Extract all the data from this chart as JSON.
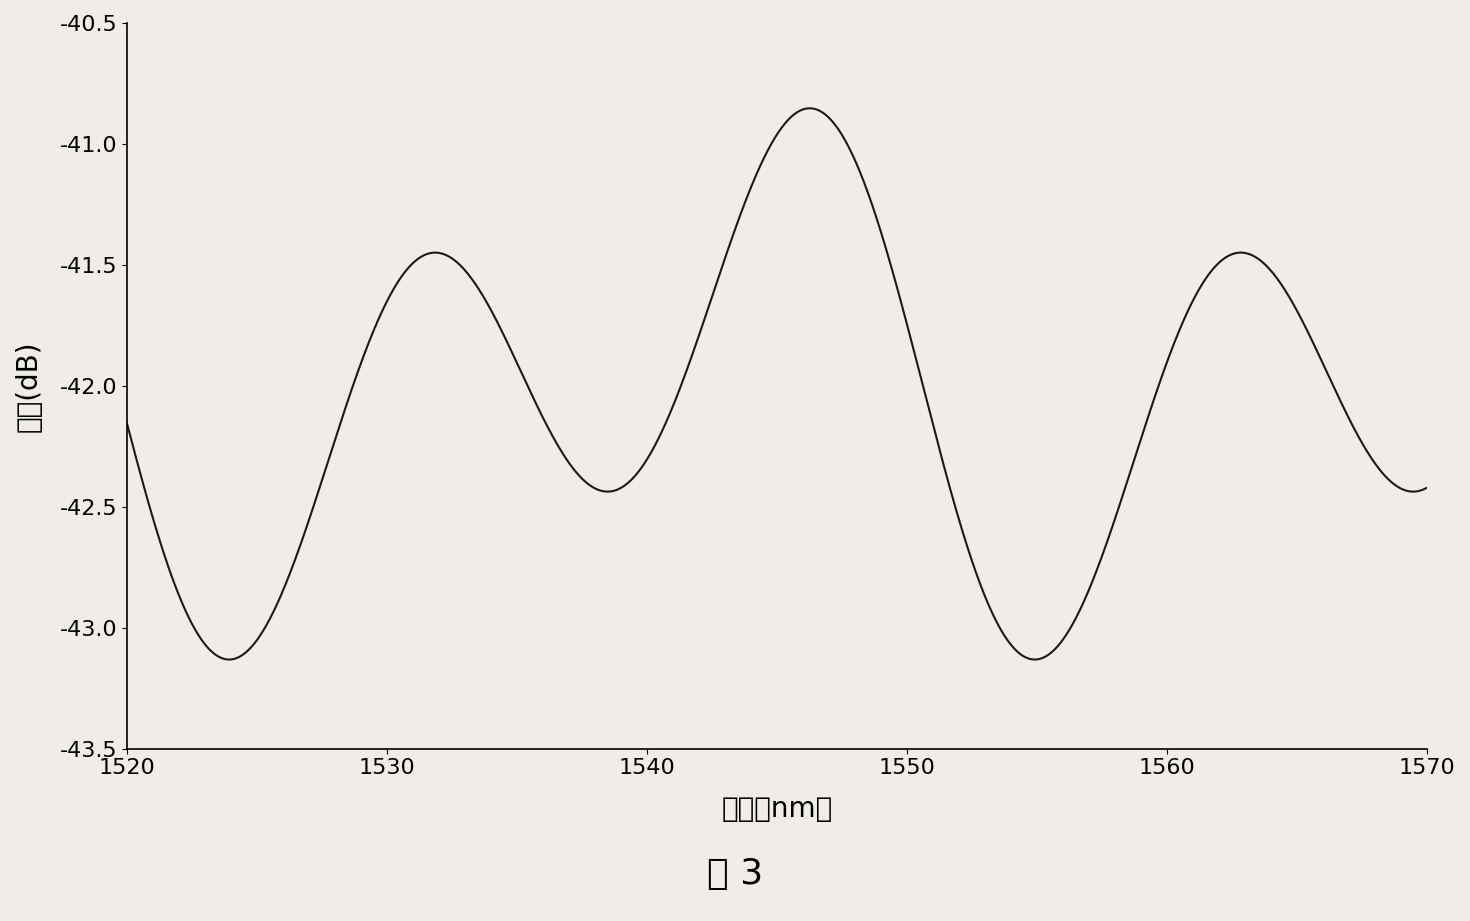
{
  "x_min": 1520,
  "x_max": 1570,
  "y_min": -43.5,
  "y_max": -40.5,
  "x_ticks": [
    1520,
    1530,
    1540,
    1550,
    1560,
    1570
  ],
  "y_ticks": [
    -43.5,
    -43,
    -42.5,
    -42,
    -41.5,
    -41,
    -40.5
  ],
  "xlabel": "波长（nm）",
  "ylabel": "幅度(dB)",
  "caption": "图 3",
  "line_color": "#1a1a1a",
  "background_color": "#f0ede8",
  "mean_level": -41.97,
  "amp1": 0.8,
  "amp2": 0.46,
  "freq1": 0.06452,
  "freq2": 0.03226,
  "phase1": 1.72,
  "phase2": 1.72
}
